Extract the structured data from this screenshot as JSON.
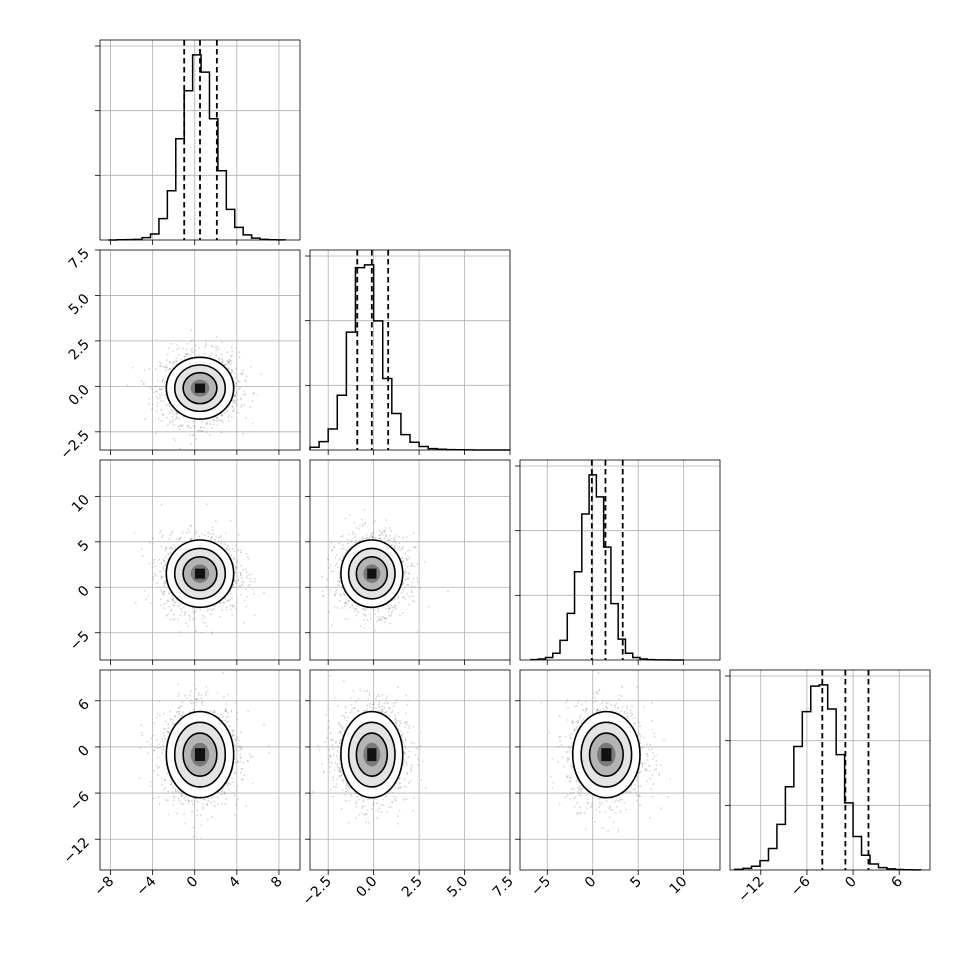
{
  "chart_data": {
    "type": "corner",
    "parameters": [
      {
        "range": [
          -9,
          10
        ],
        "ticks": [
          -8,
          -4,
          0,
          4,
          8
        ],
        "tick_labels": [
          "−8",
          "−4",
          "0",
          "4",
          "8"
        ],
        "mean": 0.5,
        "std": 1.6,
        "quantiles": [
          -1.0,
          0.5,
          2.1
        ]
      },
      {
        "range": [
          -3.5,
          7.5
        ],
        "ticks": [
          -2.5,
          0.0,
          2.5,
          5.0,
          7.5
        ],
        "tick_labels": [
          "−2.5",
          "0.0",
          "2.5",
          "5.0",
          "7.5"
        ],
        "mean": -0.1,
        "std": 0.85,
        "quantiles": [
          -0.9,
          -0.1,
          0.8
        ]
      },
      {
        "range": [
          -8,
          14
        ],
        "ticks": [
          -5,
          0,
          5,
          10
        ],
        "tick_labels": [
          "−5",
          "0",
          "5",
          "10"
        ],
        "mean": 1.5,
        "std": 1.85,
        "quantiles": [
          -0.1,
          1.4,
          3.3
        ]
      },
      {
        "range": [
          -16,
          10
        ],
        "ticks": [
          -12,
          -6,
          0,
          6
        ],
        "tick_labels": [
          "−12",
          "−6",
          "0",
          "6"
        ],
        "mean": -1.0,
        "std": 2.8,
        "quantiles": [
          -4.0,
          -1.0,
          2.0
        ]
      }
    ],
    "quantiles": [
      0.16,
      0.5,
      0.84
    ],
    "histograms": [
      {
        "parameter": 0,
        "bin_edges": [
          -8.2,
          -7.4,
          -6.6,
          -5.8,
          -5.0,
          -4.2,
          -3.4,
          -2.6,
          -1.8,
          -1.0,
          -0.2,
          0.6,
          1.4,
          2.2,
          3.0,
          3.8,
          4.6,
          5.4,
          6.2,
          7.0,
          7.8,
          8.6
        ],
        "counts": [
          0,
          2,
          3,
          5,
          18,
          45,
          160,
          370,
          760,
          1120,
          1390,
          1260,
          910,
          520,
          230,
          95,
          38,
          14,
          5,
          2,
          1
        ]
      },
      {
        "parameter": 1,
        "bin_edges": [
          -3.5,
          -3.0,
          -2.5,
          -2.0,
          -1.5,
          -1.0,
          -0.5,
          0.0,
          0.5,
          1.0,
          1.5,
          2.0,
          2.5,
          3.0,
          3.5,
          4.0,
          4.5,
          5.0,
          5.5,
          6.0,
          6.5,
          7.0,
          7.5
        ],
        "counts": [
          20,
          60,
          150,
          390,
          840,
          1300,
          1320,
          920,
          510,
          260,
          110,
          55,
          25,
          10,
          5,
          3,
          2,
          1,
          0,
          0,
          0,
          0
        ]
      },
      {
        "parameter": 2,
        "bin_edges": [
          -6.8,
          -6.0,
          -5.2,
          -4.4,
          -3.6,
          -2.8,
          -2.0,
          -1.2,
          -0.4,
          0.4,
          1.2,
          2.0,
          2.8,
          3.6,
          4.4,
          5.2,
          6.0,
          6.8,
          7.6,
          8.4,
          9.2,
          10.0
        ],
        "counts": [
          3,
          8,
          20,
          55,
          160,
          380,
          720,
          1190,
          1510,
          1330,
          920,
          460,
          170,
          55,
          20,
          8,
          3,
          1,
          1,
          0,
          0
        ]
      },
      {
        "parameter": 3,
        "bin_edges": [
          -15.4,
          -14.3,
          -13.2,
          -12.1,
          -11.0,
          -9.9,
          -8.8,
          -7.7,
          -6.6,
          -5.5,
          -4.4,
          -3.3,
          -2.2,
          -1.1,
          0.0,
          1.1,
          2.2,
          3.3,
          4.4,
          5.5,
          6.6,
          7.7,
          8.8
        ],
        "counts": [
          5,
          12,
          28,
          70,
          160,
          340,
          620,
          920,
          1180,
          1370,
          1380,
          1200,
          860,
          500,
          250,
          110,
          45,
          18,
          8,
          4,
          2,
          1
        ]
      }
    ],
    "pair_panels": [
      {
        "x": 0,
        "y": 1
      },
      {
        "x": 0,
        "y": 2
      },
      {
        "x": 1,
        "y": 2
      },
      {
        "x": 0,
        "y": 3
      },
      {
        "x": 1,
        "y": 3
      },
      {
        "x": 2,
        "y": 3
      }
    ],
    "contour_levels": [
      0.5,
      1.0,
      1.5,
      2.0
    ],
    "grid": true,
    "scatter": true
  }
}
